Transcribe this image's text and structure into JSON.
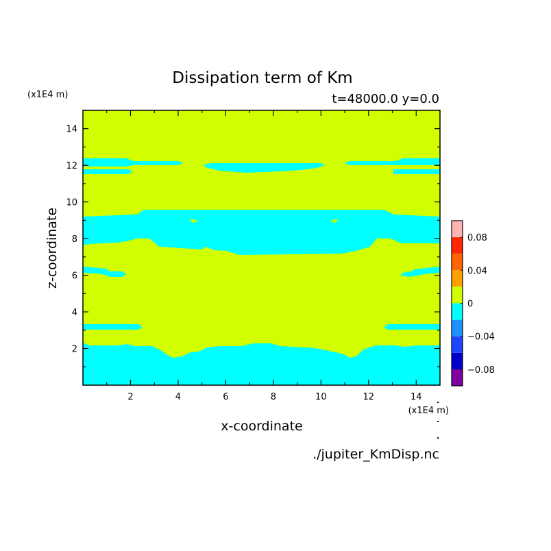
{
  "chart_data": {
    "type": "heatmap",
    "title": "Dissipation term of Km",
    "subtitle": "t=48000.0 y=0.0",
    "xlabel": "x-coordinate",
    "ylabel": "z-coordinate",
    "x_unit": "(x1E4 m)",
    "y_unit": "(x1E4 m)",
    "source_file": "./jupiter_KmDisp.nc",
    "xlim": [
      0,
      15
    ],
    "ylim": [
      0,
      15
    ],
    "x_ticks": [
      2,
      4,
      6,
      8,
      10,
      12,
      14
    ],
    "y_ticks": [
      2,
      4,
      6,
      8,
      10,
      12,
      14
    ],
    "colorbar": {
      "levels": [
        -0.1,
        -0.08,
        -0.06,
        -0.04,
        -0.02,
        0,
        0.02,
        0.04,
        0.06,
        0.08,
        0.1
      ],
      "colors": [
        "#7f00a0",
        "#0000c8",
        "#1e46ff",
        "#1e90ff",
        "#00ffff",
        "#d2ff00",
        "#ffa000",
        "#ff6400",
        "#ff2800",
        "#ffb4b4"
      ],
      "tick_values": [
        0.08,
        0.04,
        0,
        -0.04,
        -0.08
      ],
      "tick_labels": [
        "0.08",
        "0.04",
        "0",
        "−0.04",
        "−0.08"
      ]
    },
    "regions": {
      "background_level": "0 to 0.02",
      "negative_level": "-0.02 to 0",
      "negative_bands": [
        {
          "name": "bottom band",
          "z_range": [
            0,
            2.2
          ]
        },
        {
          "name": "middle band",
          "z_range": [
            7.2,
            9.4
          ]
        },
        {
          "name": "upper band",
          "z_range": [
            11.5,
            12.3
          ]
        },
        {
          "name": "side bands z~6",
          "z_range": [
            5.9,
            6.4
          ]
        },
        {
          "name": "side bands z~3",
          "z_range": [
            3.0,
            3.3
          ]
        }
      ]
    }
  }
}
